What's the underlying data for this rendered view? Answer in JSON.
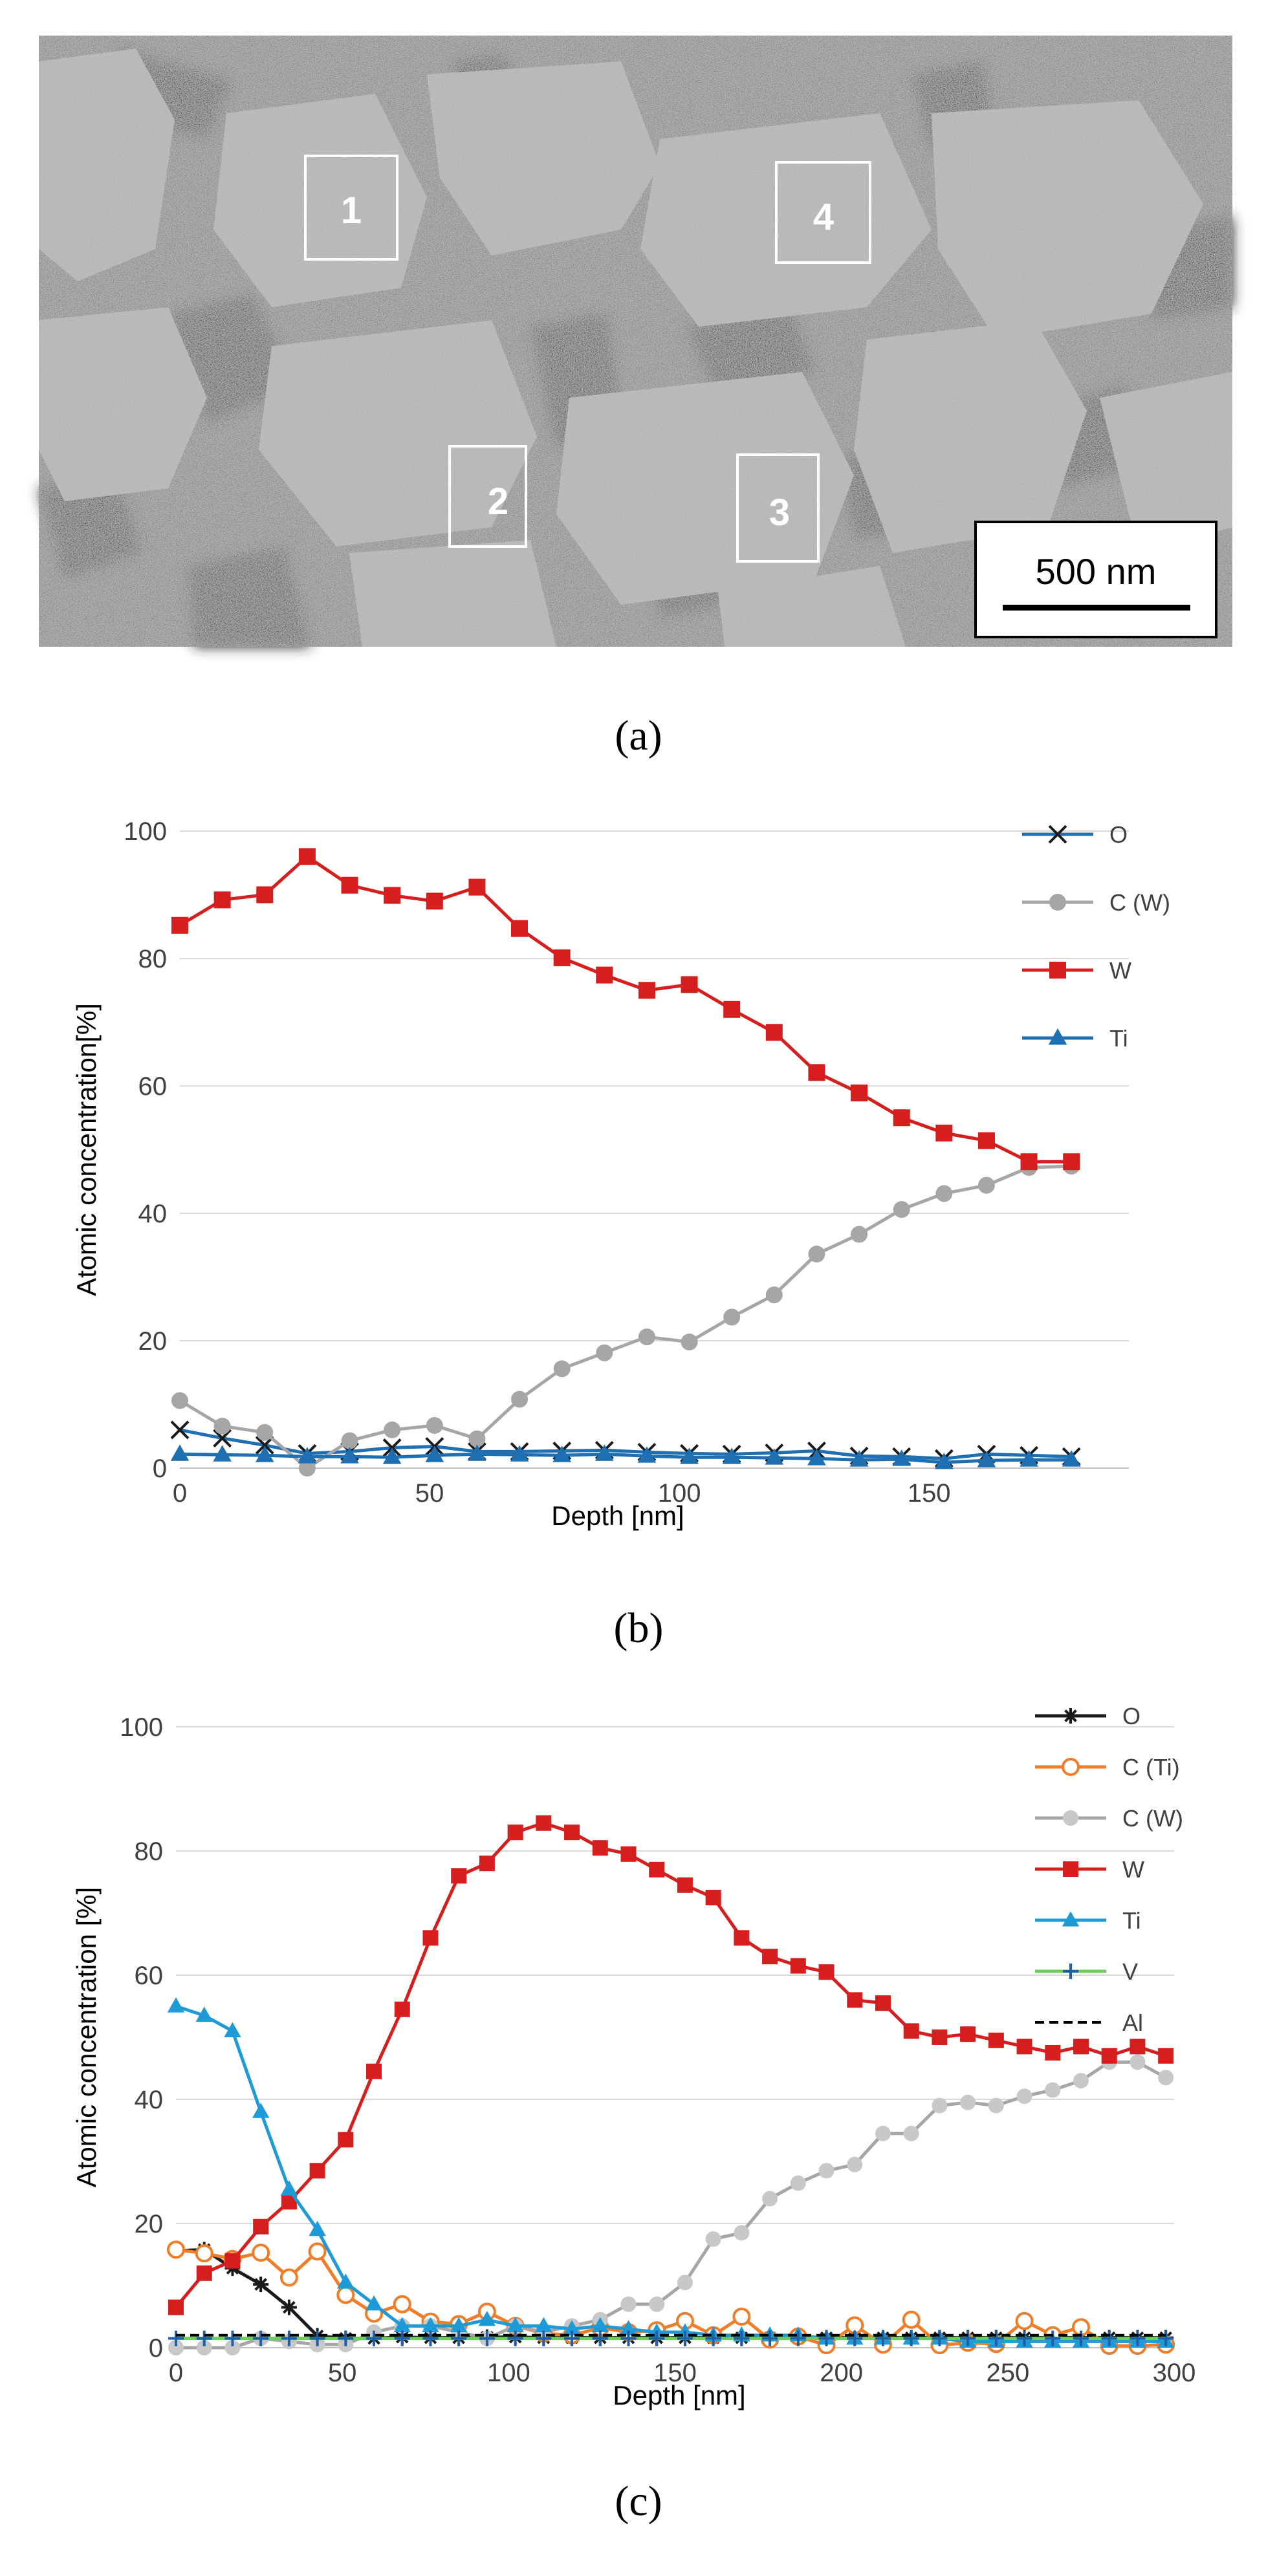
{
  "panel_a": {
    "caption": "(a)",
    "scale_bar_label": "500 nm",
    "region_labels": [
      "1",
      "2",
      "3",
      "4"
    ]
  },
  "panel_b": {
    "caption": "(b)"
  },
  "panel_c": {
    "caption": "(c)"
  },
  "chart_data": [
    {
      "type": "line",
      "panel": "b",
      "xlabel": "Depth [nm]",
      "ylabel": "Atomic concentration[%]",
      "xlim": [
        0,
        190
      ],
      "ylim": [
        0,
        100
      ],
      "xticks": [
        0,
        50,
        100,
        150
      ],
      "yticks": [
        0,
        20,
        40,
        60,
        80,
        100
      ],
      "grid": true,
      "legend": "right",
      "series": [
        {
          "name": "O",
          "marker": "x",
          "color": "#1f6fb3",
          "markerColor": "#1a1a1a",
          "x": [
            0,
            8.5,
            17,
            25.5,
            34,
            42.5,
            51,
            59.5,
            68,
            76.5,
            85,
            93.5,
            102,
            110.5,
            119,
            127.5,
            136,
            144.5,
            153,
            161.5,
            170,
            178.5
          ],
          "y": [
            6,
            4.7,
            3.6,
            2.3,
            2.6,
            3.2,
            3.4,
            2.6,
            2.6,
            2.7,
            2.8,
            2.5,
            2.3,
            2.2,
            2.4,
            2.7,
            1.9,
            1.8,
            1.5,
            2.2,
            2,
            1.8
          ]
        },
        {
          "name": "C (W)",
          "marker": "circle",
          "color": "#a6a6a6",
          "markerColor": "#a6a6a6",
          "x": [
            0,
            8.5,
            17,
            25.5,
            34,
            42.5,
            51,
            59.5,
            68,
            76.5,
            85,
            93.5,
            102,
            110.5,
            119,
            127.5,
            136,
            144.5,
            153,
            161.5,
            170,
            178.5
          ],
          "y": [
            10.6,
            6.6,
            5.6,
            0,
            4.3,
            6,
            6.7,
            4.6,
            10.8,
            15.6,
            18.1,
            20.6,
            19.8,
            23.7,
            27.2,
            33.6,
            36.7,
            40.6,
            43.1,
            44.4,
            47.2,
            47.4
          ]
        },
        {
          "name": "W",
          "marker": "square",
          "color": "#d71e1e",
          "markerColor": "#d71e1e",
          "x": [
            0,
            8.5,
            17,
            25.5,
            34,
            42.5,
            51,
            59.5,
            68,
            76.5,
            85,
            93.5,
            102,
            110.5,
            119,
            127.5,
            136,
            144.5,
            153,
            161.5,
            170,
            178.5
          ],
          "y": [
            85.2,
            89.2,
            90,
            96,
            91.5,
            89.9,
            89,
            91.2,
            84.7,
            80.1,
            77.4,
            75,
            75.9,
            72,
            68.4,
            62.1,
            58.9,
            55,
            52.6,
            51.4,
            48.1,
            48.1
          ]
        },
        {
          "name": "Ti",
          "marker": "triangle",
          "color": "#1f6fb3",
          "markerColor": "#1f6fb3",
          "x": [
            0,
            8.5,
            17,
            25.5,
            34,
            42.5,
            51,
            59.5,
            68,
            76.5,
            85,
            93.5,
            102,
            110.5,
            119,
            127.5,
            136,
            144.5,
            153,
            161.5,
            170,
            178.5
          ],
          "y": [
            2.2,
            2.1,
            2,
            1.8,
            1.8,
            1.7,
            2,
            2.2,
            2.1,
            2,
            2.2,
            1.9,
            1.7,
            1.7,
            1.6,
            1.5,
            1.3,
            1.4,
            0.9,
            1.2,
            1.3,
            1.3
          ]
        }
      ]
    },
    {
      "type": "line",
      "panel": "c",
      "xlabel": "Depth [nm]",
      "ylabel": "Atomic concentration [%]",
      "xlim": [
        0,
        300
      ],
      "ylim": [
        0,
        100
      ],
      "xticks": [
        0,
        50,
        100,
        150,
        200,
        250,
        300
      ],
      "yticks": [
        0,
        20,
        40,
        60,
        80,
        100
      ],
      "grid": true,
      "legend": "top-right",
      "series": [
        {
          "name": "O",
          "marker": "asterisk",
          "color": "#1a1a1a",
          "markerColor": "#1a1a1a",
          "x": [
            0,
            8.5,
            17,
            25.5,
            34,
            42.5,
            51,
            59.5,
            68,
            76.5,
            85,
            93.5,
            102,
            110.5,
            119,
            127.5,
            136,
            144.5,
            153,
            161.5,
            170,
            178.5,
            187,
            195.5,
            204,
            212.5,
            221,
            229.5,
            238,
            246.5,
            255,
            263.5,
            272,
            280.5,
            289,
            297.5
          ],
          "y": [
            15.6,
            15.8,
            12.8,
            10.2,
            6.5,
            1.9,
            1.5,
            1.5,
            1.7,
            1.6,
            1.6,
            1.7,
            1.7,
            1.6,
            1.6,
            1.6,
            1.6,
            1.6,
            1.6,
            1.6,
            1.6,
            1.6,
            1.6,
            1.6,
            1.6,
            1.6,
            1.6,
            1.6,
            1.6,
            1.6,
            1.6,
            1.6,
            1.6,
            1.6,
            1.6,
            1.6
          ]
        },
        {
          "name": "C (Ti)",
          "marker": "open-circle",
          "color": "#f07d28",
          "markerColor": "#f07d28",
          "x": [
            0,
            8.5,
            17,
            25.5,
            34,
            42.5,
            51,
            59.5,
            68,
            76.5,
            85,
            93.5,
            102,
            110.5,
            119,
            127.5,
            136,
            144.5,
            153,
            161.5,
            170,
            178.5,
            187,
            195.5,
            204,
            212.5,
            221,
            229.5,
            238,
            246.5,
            255,
            263.5,
            272,
            280.5,
            289,
            297.5
          ],
          "y": [
            15.8,
            15.2,
            14.3,
            15.3,
            11.3,
            15.5,
            8.5,
            5.5,
            7,
            4.2,
            3.8,
            5.8,
            3.5,
            2.3,
            2,
            3.2,
            2.5,
            2.8,
            4.3,
            2,
            5,
            1.3,
            1.8,
            0.4,
            3.6,
            0.5,
            4.5,
            0.4,
            0.8,
            0.6,
            4.3,
            2,
            3.3,
            0.3,
            0.3,
            0.5
          ]
        },
        {
          "name": "C (W)",
          "marker": "circle",
          "color": "#a6a6a6",
          "markerColor": "#c8c8c8",
          "x": [
            0,
            8.5,
            17,
            25.5,
            34,
            42.5,
            51,
            59.5,
            68,
            76.5,
            85,
            93.5,
            102,
            110.5,
            119,
            127.5,
            136,
            144.5,
            153,
            161.5,
            170,
            178.5,
            187,
            195.5,
            204,
            212.5,
            221,
            229.5,
            238,
            246.5,
            255,
            263.5,
            272,
            280.5,
            289,
            297.5
          ],
          "y": [
            0,
            0,
            0,
            1.5,
            1,
            0.5,
            0.5,
            2.5,
            3.5,
            3.5,
            2.5,
            1.5,
            3.5,
            2.5,
            3.5,
            4.5,
            7,
            7,
            10.5,
            17.5,
            18.5,
            24,
            26.5,
            28.5,
            29.5,
            34.5,
            34.5,
            39,
            39.5,
            39,
            40.5,
            41.5,
            43,
            46,
            46,
            43.5
          ]
        },
        {
          "name": "W",
          "marker": "square",
          "color": "#d71e1e",
          "markerColor": "#d71e1e",
          "x": [
            0,
            8.5,
            17,
            25.5,
            34,
            42.5,
            51,
            59.5,
            68,
            76.5,
            85,
            93.5,
            102,
            110.5,
            119,
            127.5,
            136,
            144.5,
            153,
            161.5,
            170,
            178.5,
            187,
            195.5,
            204,
            212.5,
            221,
            229.5,
            238,
            246.5,
            255,
            263.5,
            272,
            280.5,
            289,
            297.5
          ],
          "y": [
            6.5,
            12,
            14,
            19.5,
            23.5,
            28.5,
            33.5,
            44.5,
            54.5,
            66,
            76,
            78,
            83,
            84.5,
            83,
            80.5,
            79.5,
            77,
            74.5,
            72.5,
            66,
            63,
            61.5,
            60.5,
            56,
            55.5,
            51,
            50,
            50.5,
            49.5,
            48.5,
            47.5,
            48.5,
            47,
            48.5,
            47
          ]
        },
        {
          "name": "Ti",
          "marker": "triangle",
          "color": "#1e9ad6",
          "markerColor": "#1e9ad6",
          "x": [
            0,
            8.5,
            17,
            25.5,
            34,
            42.5,
            51,
            59.5,
            68,
            76.5,
            85,
            93.5,
            102,
            110.5,
            119,
            127.5,
            136,
            144.5,
            153,
            161.5,
            170,
            178.5,
            187,
            195.5,
            204,
            212.5,
            221,
            229.5,
            238,
            246.5,
            255,
            263.5,
            272,
            280.5,
            289,
            297.5
          ],
          "y": [
            55,
            53.5,
            51,
            38,
            25.5,
            19,
            10.5,
            7,
            3.5,
            3.5,
            3.5,
            4.5,
            3.5,
            3.5,
            3,
            3.5,
            3,
            2.5,
            2.5,
            2,
            2,
            2,
            2,
            1.5,
            1.5,
            1.5,
            1.5,
            1.5,
            1,
            1,
            1,
            1,
            1,
            1,
            1,
            1
          ]
        },
        {
          "name": "V",
          "marker": "plus",
          "color": "#6ccf5b",
          "markerColor": "#1f5fa8",
          "x": [
            0,
            8.5,
            17,
            25.5,
            34,
            42.5,
            51,
            59.5,
            68,
            76.5,
            85,
            93.5,
            102,
            110.5,
            119,
            127.5,
            136,
            144.5,
            153,
            161.5,
            170,
            178.5,
            187,
            195.5,
            204,
            212.5,
            221,
            229.5,
            238,
            246.5,
            255,
            263.5,
            272,
            280.5,
            289,
            297.5
          ],
          "y": [
            1.5,
            1.5,
            1.5,
            1.5,
            1.5,
            1.5,
            1.5,
            1.5,
            1.5,
            1.5,
            1.5,
            1.5,
            1.5,
            1.5,
            1.5,
            1.5,
            1.5,
            1.5,
            1.5,
            1.5,
            1.5,
            1.5,
            1.5,
            1.5,
            1.5,
            1.5,
            1.5,
            1.5,
            1.5,
            1.5,
            1.5,
            1.5,
            1.5,
            1.5,
            1.5,
            1.5
          ]
        },
        {
          "name": "Al",
          "marker": "none",
          "dash": true,
          "color": "#000000",
          "markerColor": "#000000",
          "x": [
            0,
            8.5,
            17,
            25.5,
            34,
            42.5,
            51,
            59.5,
            68,
            76.5,
            85,
            93.5,
            102,
            110.5,
            119,
            127.5,
            136,
            144.5,
            153,
            161.5,
            170,
            178.5,
            187,
            195.5,
            204,
            212.5,
            221,
            229.5,
            238,
            246.5,
            255,
            263.5,
            272,
            280.5,
            289,
            297.5
          ],
          "y": [
            2,
            2,
            2,
            2,
            2,
            2,
            2,
            2,
            2,
            2,
            2,
            2,
            2,
            2,
            2,
            2,
            2,
            2,
            2,
            2,
            2,
            2,
            2,
            2,
            2,
            2,
            2,
            2,
            2,
            2,
            2,
            2,
            2,
            2,
            2,
            2
          ]
        }
      ]
    }
  ]
}
